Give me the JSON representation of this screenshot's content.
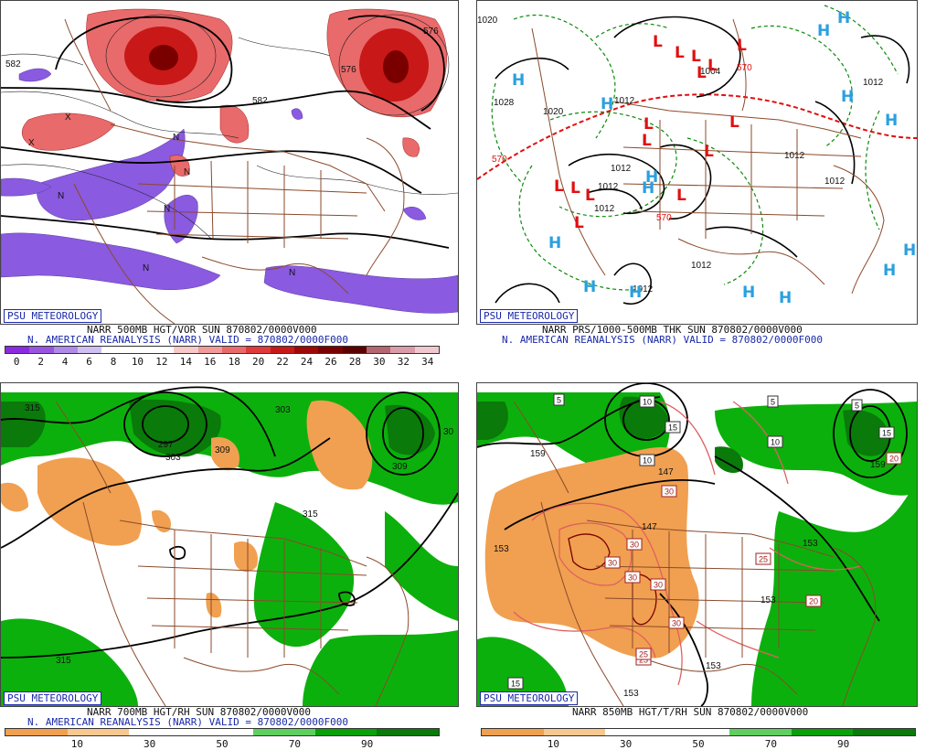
{
  "panels": {
    "tl": {
      "badge": "PSU METEOROLOGY",
      "title": "NARR 500MB HGT/VOR SUN 870802/0000V000",
      "subtitle": "N. AMERICAN REANALYSIS (NARR) VALID = 870802/0000F000",
      "scale_labels": [
        "0",
        "2",
        "4",
        "6",
        "8",
        "10",
        "12",
        "14",
        "16",
        "18",
        "20",
        "22",
        "24",
        "26",
        "28",
        "30",
        "32",
        "34"
      ],
      "scale_colors": [
        "#8a2be2",
        "#9a55e0",
        "#b08ae8",
        "#d0c0f2",
        "#ffffff",
        "#ffffff",
        "#ffffff",
        "#f7c9c9",
        "#f09a9a",
        "#e86a6a",
        "#e03a3a",
        "#c81818",
        "#a00808",
        "#7a0000",
        "#5a0000",
        "#b5656f",
        "#d99ca8",
        "#f2c8d0"
      ],
      "contour_labels": [
        "582",
        "576",
        "582",
        "576"
      ],
      "vort_marks": [
        "N",
        "N",
        "N",
        "N",
        "N",
        "N",
        "X",
        "X"
      ]
    },
    "tr": {
      "badge": "PSU METEOROLOGY",
      "title": "NARR PRS/1000-500MB THK SUN 870802/0000V000",
      "subtitle": "N. AMERICAN REANALYSIS (NARR) VALID = 870802/0000F000",
      "isobar_labels": [
        "1020",
        "1028",
        "1020",
        "1012",
        "1012",
        "1012",
        "1012",
        "1012",
        "1012",
        "1012",
        "1004",
        "1012",
        "1012"
      ],
      "thickness_labels": [
        "570",
        "570",
        "570"
      ],
      "high_symbol": "H",
      "low_symbol": "L"
    },
    "bl": {
      "badge": "PSU METEOROLOGY",
      "title": "NARR 700MB HGT/RH SUN 870802/0000V000",
      "subtitle": "N. AMERICAN REANALYSIS (NARR) VALID = 870802/0000F000",
      "scale_labels": [
        "10",
        "30",
        "50",
        "70",
        "90"
      ],
      "scale_colors": [
        "#f0a050",
        "#f8c890",
        "#ffffff",
        "#ffffff",
        "#5fcf5f",
        "#0aa00a",
        "#0a7a0a"
      ],
      "contour_labels": [
        "315",
        "297",
        "303",
        "309",
        "303",
        "309",
        "315",
        "315",
        "30"
      ]
    },
    "br": {
      "badge": "PSU METEOROLOGY",
      "title": "NARR 850MB HGT/T/RH SUN 870802/0000V000",
      "subtitle": "",
      "scale_labels": [
        "10",
        "30",
        "50",
        "70",
        "90"
      ],
      "scale_colors": [
        "#f0a050",
        "#f8c890",
        "#ffffff",
        "#ffffff",
        "#5fcf5f",
        "#0aa00a",
        "#0a7a0a"
      ],
      "contour_labels": [
        "159",
        "147",
        "153",
        "147",
        "153",
        "153",
        "153",
        "159",
        "153"
      ],
      "temp_boxes": [
        "5",
        "10",
        "15",
        "10",
        "5",
        "5",
        "10",
        "15",
        "20",
        "30",
        "30",
        "30",
        "30",
        "30",
        "30",
        "25",
        "25",
        "20",
        "25",
        "15"
      ]
    }
  },
  "colors": {
    "border": "#444444",
    "map_lines": "#8b4a2b",
    "contour": "#000000",
    "label_blue": "#1a2aa8",
    "high_blue": "#2aa0e0",
    "low_red": "#e01010",
    "isotherm_red": "#e06060",
    "rh_green": "#0cb00c",
    "rh_dry": "#f0a050",
    "vort_purple": "#8a5ae0",
    "vort_red": "#e04040"
  }
}
